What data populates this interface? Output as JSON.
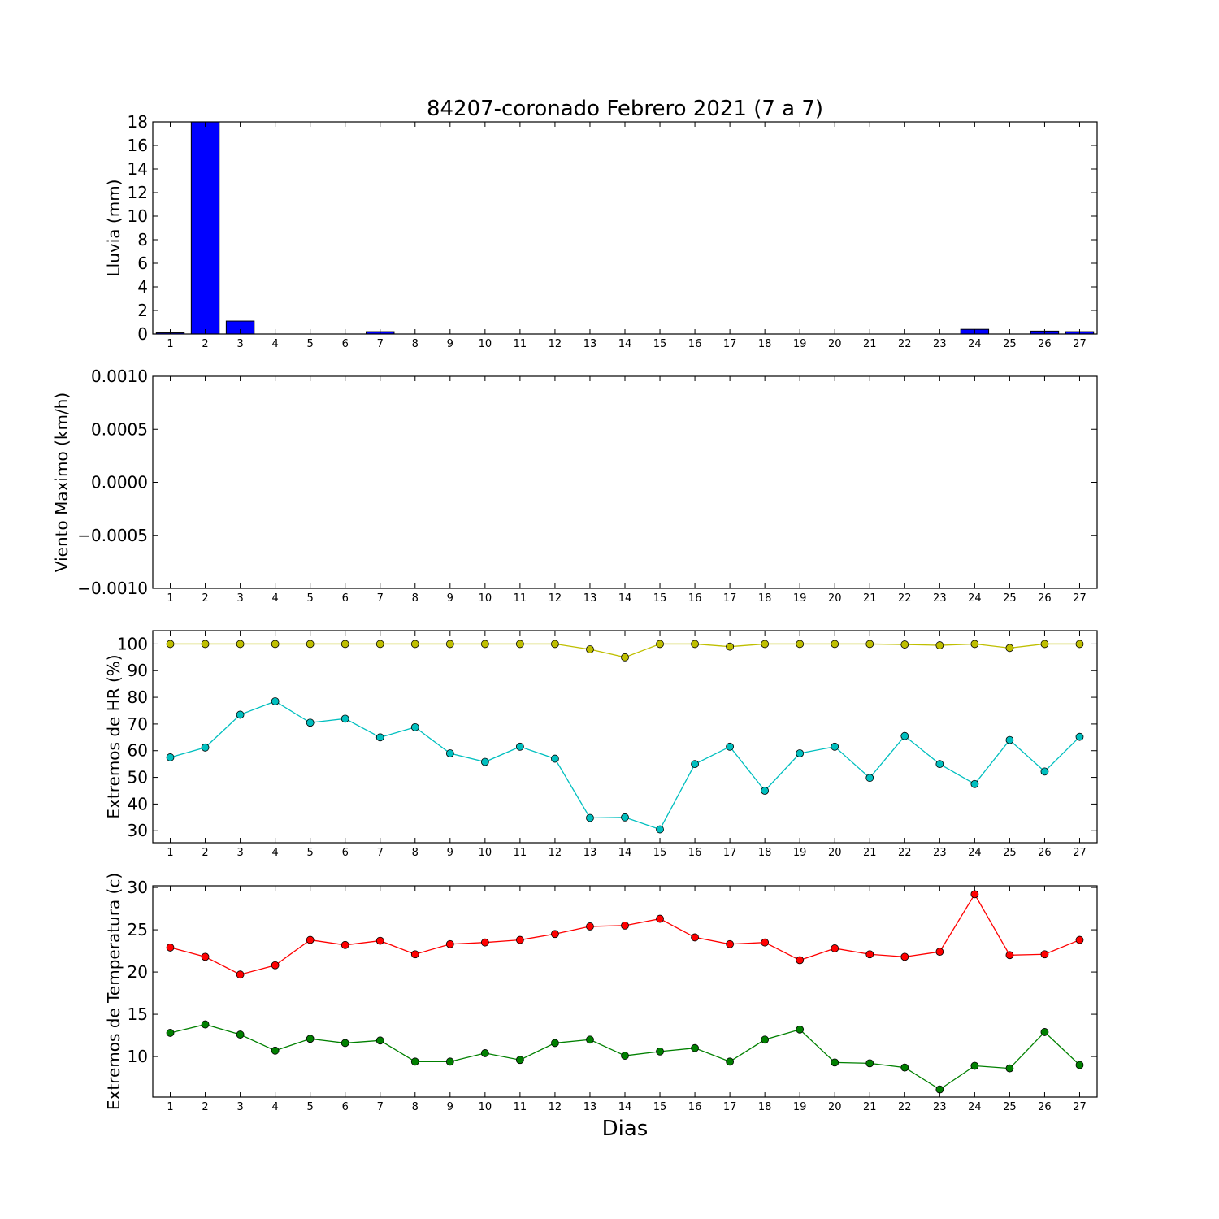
{
  "title": "84207-coronado Febrero 2021  (7 a 7)",
  "xlabel": "Dias",
  "chart_data": [
    {
      "type": "bar",
      "name": "lluvia",
      "ylabel": "Lluvia (mm)",
      "ylim": [
        0,
        18
      ],
      "yticks": [
        0,
        2,
        4,
        6,
        8,
        10,
        12,
        14,
        16,
        18
      ],
      "ytick_labels": [
        "0",
        "2",
        "4",
        "6",
        "8",
        "10",
        "12",
        "14",
        "16",
        "18"
      ],
      "categories": [
        "1",
        "2",
        "3",
        "4",
        "5",
        "6",
        "7",
        "8",
        "9",
        "10",
        "11",
        "12",
        "13",
        "14",
        "15",
        "16",
        "17",
        "18",
        "19",
        "20",
        "21",
        "22",
        "23",
        "24",
        "25",
        "26",
        "27"
      ],
      "color": "#0000ff",
      "values": [
        0.1,
        18.2,
        1.1,
        0,
        0,
        0,
        0.2,
        0,
        0,
        0,
        0,
        0,
        0,
        0,
        0,
        0,
        0,
        0,
        0,
        0,
        0,
        0,
        0,
        0.4,
        0,
        0.25,
        0.2
      ]
    },
    {
      "type": "line",
      "name": "viento",
      "ylabel": "Viento Maximo (km/h)",
      "ylim": [
        -0.001,
        0.001
      ],
      "yticks": [
        -0.001,
        -0.0005,
        0,
        0.0005,
        0.001
      ],
      "ytick_labels": [
        "−0.0010",
        "−0.0005",
        "0.0000",
        "0.0005",
        "0.0010"
      ],
      "categories": [
        "1",
        "2",
        "3",
        "4",
        "5",
        "6",
        "7",
        "8",
        "9",
        "10",
        "11",
        "12",
        "13",
        "14",
        "15",
        "16",
        "17",
        "18",
        "19",
        "20",
        "21",
        "22",
        "23",
        "24",
        "25",
        "26",
        "27"
      ],
      "series": []
    },
    {
      "type": "line",
      "name": "humedad",
      "ylabel": "Extremos de HR (%)",
      "ylim": [
        25.5,
        105
      ],
      "yticks": [
        30,
        40,
        50,
        60,
        70,
        80,
        90,
        100
      ],
      "ytick_labels": [
        "30",
        "40",
        "50",
        "60",
        "70",
        "80",
        "90",
        "100"
      ],
      "categories": [
        "1",
        "2",
        "3",
        "4",
        "5",
        "6",
        "7",
        "8",
        "9",
        "10",
        "11",
        "12",
        "13",
        "14",
        "15",
        "16",
        "17",
        "18",
        "19",
        "20",
        "21",
        "22",
        "23",
        "24",
        "25",
        "26",
        "27"
      ],
      "series": [
        {
          "color": "#bfbf00",
          "values": [
            100,
            100,
            100,
            100,
            100,
            100,
            100,
            100,
            100,
            100,
            100,
            100,
            98,
            95,
            100,
            100,
            99,
            100,
            100,
            100,
            100,
            99.8,
            99.5,
            100,
            98.5,
            100,
            100
          ]
        },
        {
          "color": "#00bfbf",
          "values": [
            57.5,
            61.2,
            73.5,
            78.5,
            70.5,
            72,
            65,
            68.8,
            59,
            55.8,
            61.5,
            57,
            34.8,
            35,
            30.5,
            55,
            61.5,
            45,
            59,
            61.5,
            49.8,
            65.5,
            55,
            47.5,
            64,
            52.2,
            65.2
          ]
        }
      ]
    },
    {
      "type": "line",
      "name": "temperatura",
      "ylabel": "Extremos de Temperatura (c)",
      "ylim": [
        5.2,
        30.2
      ],
      "yticks": [
        10,
        15,
        20,
        25,
        30
      ],
      "ytick_labels": [
        "10",
        "15",
        "20",
        "25",
        "30"
      ],
      "categories": [
        "1",
        "2",
        "3",
        "4",
        "5",
        "6",
        "7",
        "8",
        "9",
        "10",
        "11",
        "12",
        "13",
        "14",
        "15",
        "16",
        "17",
        "18",
        "19",
        "20",
        "21",
        "22",
        "23",
        "24",
        "25",
        "26",
        "27"
      ],
      "series": [
        {
          "color": "#ff0000",
          "values": [
            22.9,
            21.8,
            19.7,
            20.8,
            23.8,
            23.2,
            23.7,
            22.1,
            23.3,
            23.5,
            23.8,
            24.5,
            25.4,
            25.5,
            26.3,
            24.1,
            23.3,
            23.5,
            21.4,
            22.8,
            22.1,
            21.8,
            22.4,
            29.2,
            22,
            22.1,
            23.8
          ]
        },
        {
          "color": "#008000",
          "values": [
            12.8,
            13.8,
            12.6,
            10.7,
            12.1,
            11.6,
            11.9,
            9.4,
            9.4,
            10.4,
            9.6,
            11.6,
            12,
            10.1,
            10.6,
            11,
            9.4,
            12,
            13.2,
            9.3,
            9.2,
            8.7,
            6.1,
            8.9,
            8.6,
            12.9,
            9
          ]
        }
      ]
    }
  ]
}
